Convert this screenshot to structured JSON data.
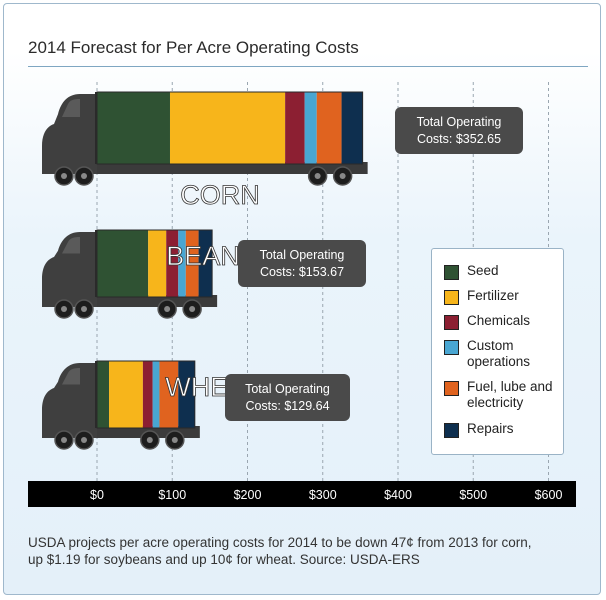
{
  "title": "2014 Forecast for Per Acre Operating Costs",
  "caption": "USDA projects per acre operating costs for 2014 to be down 47¢ from 2013 for corn, up $1.19 for soybeans and up 10¢ for wheat.  Source: USDA-ERS",
  "chart_data": {
    "type": "bar",
    "orientation": "horizontal-stacked",
    "style": "trucks",
    "title": "2014 Forecast for Per Acre Operating Costs",
    "xlim": [
      0,
      600
    ],
    "x_ticks": [
      "$0",
      "$100",
      "$200",
      "$300",
      "$400",
      "$500",
      "$600"
    ],
    "x_tick_values": [
      0,
      100,
      200,
      300,
      400,
      500,
      600
    ],
    "grid": "vertical dashed",
    "legend_position": "right",
    "categories": [
      "CORN",
      "BEANS",
      "WHEAT"
    ],
    "series": [
      {
        "name": "Seed",
        "color": "#2f5233",
        "values": [
          97,
          68,
          16
        ]
      },
      {
        "name": "Fertilizer",
        "color": "#f7b51b",
        "values": [
          153,
          24,
          45
        ]
      },
      {
        "name": "Chemicals",
        "color": "#8c1f32",
        "values": [
          26,
          16,
          13
        ]
      },
      {
        "name": "Custom operations",
        "color": "#49a6d2",
        "values": [
          16,
          10,
          9
        ]
      },
      {
        "name": "Fuel, lube and electricity",
        "color": "#e0631f",
        "values": [
          33,
          17,
          25
        ]
      },
      {
        "name": "Repairs",
        "color": "#0e2f4f",
        "values": [
          28,
          18,
          22
        ]
      }
    ],
    "totals": [
      {
        "category": "CORN",
        "label": "Total Operating",
        "value_label": "Costs: $352.65"
      },
      {
        "category": "BEANS",
        "label": "Total Operating",
        "value_label": "Costs: $153.67"
      },
      {
        "category": "WHEAT",
        "label": "Total Operating",
        "value_label": "Costs: $129.64"
      }
    ]
  }
}
